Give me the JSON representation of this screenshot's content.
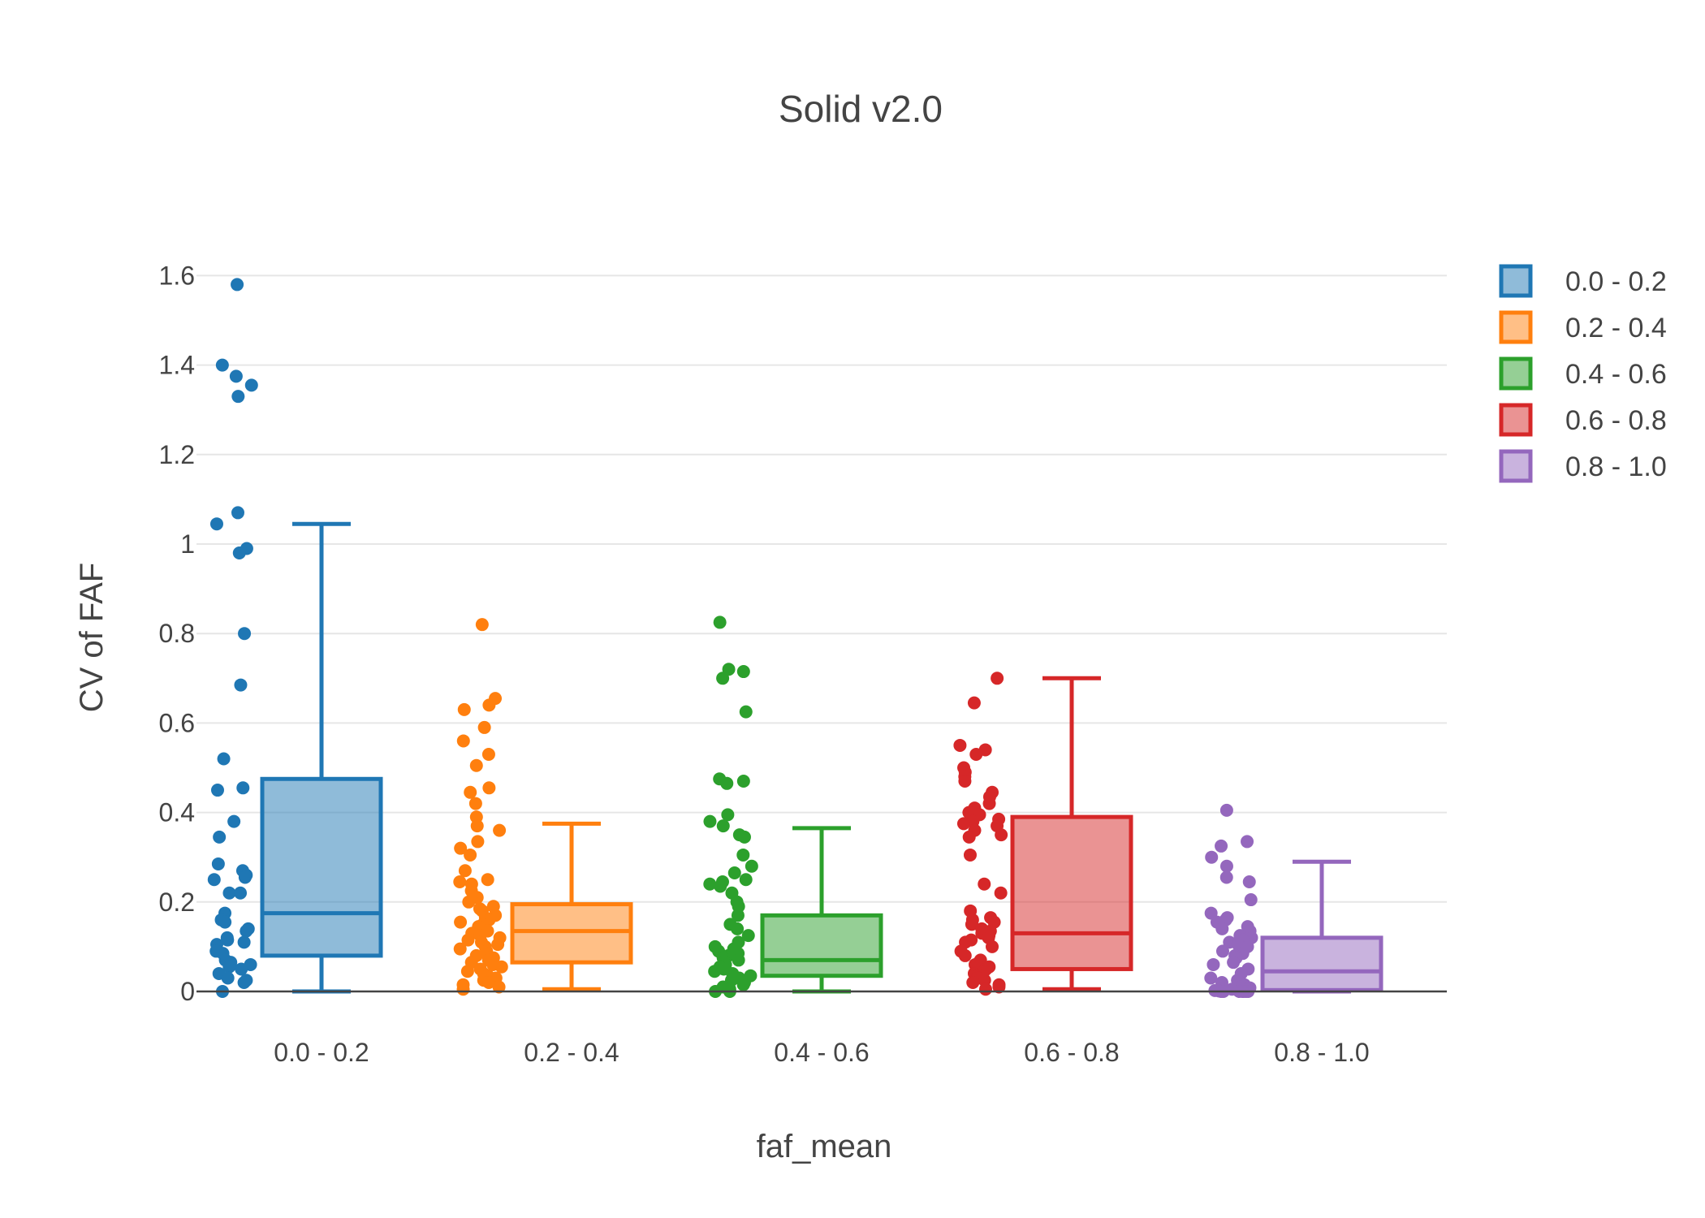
{
  "chart_data": {
    "type": "box",
    "title": "Solid v2.0",
    "xlabel": "faf_mean",
    "ylabel": "CV of FAF",
    "ylim": [
      0,
      1.65
    ],
    "yticks": [
      {
        "value": 0,
        "label": "0"
      },
      {
        "value": 0.2,
        "label": "0.2"
      },
      {
        "value": 0.4,
        "label": "0.4"
      },
      {
        "value": 0.6,
        "label": "0.6"
      },
      {
        "value": 0.8,
        "label": "0.8"
      },
      {
        "value": 1,
        "label": "1"
      },
      {
        "value": 1.2,
        "label": "1.2"
      },
      {
        "value": 1.4,
        "label": "1.4"
      },
      {
        "value": 1.6,
        "label": "1.6"
      }
    ],
    "grid": true,
    "legend_position": "top-right",
    "categories": [
      "0.0 - 0.2",
      "0.2 - 0.4",
      "0.4 - 0.6",
      "0.6 - 0.8",
      "0.8 - 1.0"
    ],
    "series": [
      {
        "name": "0.0 - 0.2",
        "color": "#1f77b4",
        "box": {
          "lower_whisker": 0.0,
          "q1": 0.08,
          "median": 0.175,
          "q3": 0.475,
          "upper_whisker": 1.045
        },
        "points": [
          1.58,
          1.4,
          1.375,
          1.355,
          1.33,
          1.07,
          1.045,
          0.99,
          0.98,
          0.8,
          0.685,
          0.52,
          0.455,
          0.45,
          0.38,
          0.345,
          0.285,
          0.27,
          0.26,
          0.255,
          0.25,
          0.22,
          0.22,
          0.175,
          0.16,
          0.155,
          0.14,
          0.135,
          0.12,
          0.115,
          0.11,
          0.105,
          0.09,
          0.085,
          0.07,
          0.065,
          0.06,
          0.055,
          0.05,
          0.04,
          0.03,
          0.025,
          0.02,
          0.0
        ]
      },
      {
        "name": "0.2 - 0.4",
        "color": "#ff7f0e",
        "box": {
          "lower_whisker": 0.005,
          "q1": 0.065,
          "median": 0.135,
          "q3": 0.195,
          "upper_whisker": 0.375
        },
        "points": [
          0.82,
          0.655,
          0.64,
          0.63,
          0.59,
          0.56,
          0.53,
          0.505,
          0.455,
          0.445,
          0.42,
          0.39,
          0.37,
          0.36,
          0.335,
          0.32,
          0.305,
          0.27,
          0.25,
          0.245,
          0.24,
          0.225,
          0.21,
          0.2,
          0.19,
          0.185,
          0.18,
          0.17,
          0.165,
          0.16,
          0.155,
          0.15,
          0.145,
          0.14,
          0.135,
          0.13,
          0.125,
          0.12,
          0.115,
          0.11,
          0.105,
          0.1,
          0.095,
          0.09,
          0.085,
          0.08,
          0.075,
          0.07,
          0.065,
          0.06,
          0.055,
          0.05,
          0.045,
          0.04,
          0.035,
          0.03,
          0.025,
          0.02,
          0.015,
          0.01,
          0.005
        ]
      },
      {
        "name": "0.4 - 0.6",
        "color": "#2ca02c",
        "box": {
          "lower_whisker": 0.0,
          "q1": 0.035,
          "median": 0.07,
          "q3": 0.17,
          "upper_whisker": 0.365
        },
        "points": [
          0.825,
          0.72,
          0.715,
          0.7,
          0.625,
          0.475,
          0.47,
          0.465,
          0.395,
          0.38,
          0.37,
          0.35,
          0.345,
          0.305,
          0.28,
          0.265,
          0.25,
          0.245,
          0.24,
          0.235,
          0.22,
          0.2,
          0.19,
          0.17,
          0.15,
          0.14,
          0.125,
          0.11,
          0.1,
          0.095,
          0.09,
          0.085,
          0.08,
          0.075,
          0.07,
          0.065,
          0.06,
          0.055,
          0.05,
          0.045,
          0.04,
          0.035,
          0.03,
          0.025,
          0.02,
          0.015,
          0.01,
          0.005,
          0.0,
          0.0
        ]
      },
      {
        "name": "0.6 - 0.8",
        "color": "#d62728",
        "box": {
          "lower_whisker": 0.005,
          "q1": 0.05,
          "median": 0.13,
          "q3": 0.39,
          "upper_whisker": 0.7
        },
        "points": [
          0.7,
          0.645,
          0.55,
          0.54,
          0.53,
          0.5,
          0.49,
          0.48,
          0.47,
          0.445,
          0.435,
          0.42,
          0.41,
          0.4,
          0.395,
          0.385,
          0.38,
          0.375,
          0.37,
          0.36,
          0.35,
          0.345,
          0.305,
          0.24,
          0.22,
          0.18,
          0.165,
          0.16,
          0.155,
          0.15,
          0.14,
          0.135,
          0.13,
          0.125,
          0.12,
          0.115,
          0.11,
          0.1,
          0.09,
          0.08,
          0.07,
          0.065,
          0.06,
          0.055,
          0.05,
          0.045,
          0.04,
          0.035,
          0.03,
          0.025,
          0.02,
          0.015,
          0.01,
          0.005
        ]
      },
      {
        "name": "0.8 - 1.0",
        "color": "#9467bd",
        "box": {
          "lower_whisker": 0.0,
          "q1": 0.003,
          "median": 0.045,
          "q3": 0.12,
          "upper_whisker": 0.29
        },
        "points": [
          0.405,
          0.335,
          0.325,
          0.3,
          0.28,
          0.255,
          0.245,
          0.205,
          0.175,
          0.165,
          0.16,
          0.155,
          0.145,
          0.14,
          0.135,
          0.125,
          0.12,
          0.115,
          0.11,
          0.105,
          0.1,
          0.09,
          0.085,
          0.08,
          0.075,
          0.065,
          0.06,
          0.05,
          0.04,
          0.03,
          0.025,
          0.02,
          0.015,
          0.01,
          0.008,
          0.005,
          0.004,
          0.003,
          0.002,
          0.001,
          0.0,
          0.0,
          0.0,
          0.0,
          0.0,
          0.0,
          0.0
        ]
      }
    ]
  }
}
